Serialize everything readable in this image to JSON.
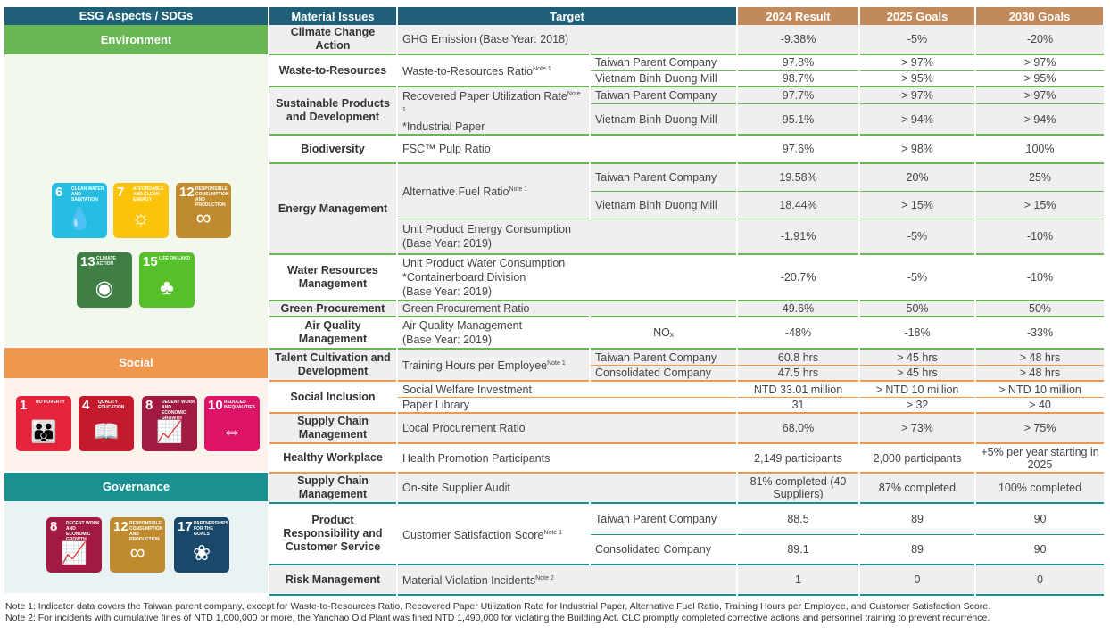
{
  "header": {
    "esg": "ESG Aspects / SDGs",
    "issues": "Material Issues",
    "target": "Target",
    "r2024": "2024 Result",
    "g2025": "2025 Goals",
    "g2030": "2030 Goals"
  },
  "colors": {
    "header_blue": "#1f5f78",
    "header_tan": "#c08a5c",
    "environment": "#6ab554",
    "social": "#f0974f",
    "governance": "#1a9191"
  },
  "sections": [
    {
      "key": "environment",
      "label": "Environment",
      "sdgs": [
        {
          "num": "6",
          "label": "CLEAN WATER AND SANITATION",
          "color": "#26bde2",
          "icon": "water-drop-icon"
        },
        {
          "num": "7",
          "label": "AFFORDABLE AND CLEAN ENERGY",
          "color": "#fcc30b",
          "icon": "sun-icon"
        },
        {
          "num": "12",
          "label": "RESPONSIBLE CONSUMPTION AND PRODUCTION",
          "color": "#bf8b2e",
          "icon": "infinity-icon"
        },
        {
          "num": "13",
          "label": "CLIMATE ACTION",
          "color": "#3f7e44",
          "icon": "eye-globe-icon"
        },
        {
          "num": "15",
          "label": "LIFE ON LAND",
          "color": "#56c02b",
          "icon": "tree-icon"
        }
      ]
    },
    {
      "key": "social",
      "label": "Social",
      "sdgs": [
        {
          "num": "1",
          "label": "NO POVERTY",
          "color": "#e5243b",
          "icon": "family-icon"
        },
        {
          "num": "4",
          "label": "QUALITY EDUCATION",
          "color": "#c5192d",
          "icon": "book-icon"
        },
        {
          "num": "8",
          "label": "DECENT WORK AND ECONOMIC GROWTH",
          "color": "#a21942",
          "icon": "growth-chart-icon"
        },
        {
          "num": "10",
          "label": "REDUCED INEQUALITIES",
          "color": "#dd1367",
          "icon": "equality-icon"
        }
      ]
    },
    {
      "key": "governance",
      "label": "Governance",
      "sdgs": [
        {
          "num": "8",
          "label": "DECENT WORK AND ECONOMIC GROWTH",
          "color": "#a21942",
          "icon": "growth-chart-icon"
        },
        {
          "num": "12",
          "label": "RESPONSIBLE CONSUMPTION AND PRODUCTION",
          "color": "#bf8b2e",
          "icon": "infinity-icon"
        },
        {
          "num": "17",
          "label": "PARTNERSHIPS FOR THE GOALS",
          "color": "#19486a",
          "icon": "flower-icon"
        }
      ]
    }
  ],
  "issues": [
    {
      "section": "environment",
      "issue": "Climate Change Action",
      "targets": [
        {
          "label": "GHG Emission (Base Year: 2018)",
          "rows": [
            {
              "entity": "",
              "r2024": "-9.38%",
              "g2025": "-5%",
              "g2030": "-20%"
            }
          ]
        }
      ]
    },
    {
      "section": "environment",
      "issue": "Waste-to-Resources",
      "targets": [
        {
          "label": "Waste-to-Resources Ratio",
          "note": "Note 1",
          "rows": [
            {
              "entity": "Taiwan Parent Company",
              "r2024": "97.8%",
              "g2025": "> 97%",
              "g2030": "> 97%"
            },
            {
              "entity": "Vietnam Binh Duong Mill",
              "r2024": "98.7%",
              "g2025": "> 95%",
              "g2030": "> 95%"
            }
          ]
        }
      ]
    },
    {
      "section": "environment",
      "issue": "Sustainable Products and Development",
      "targets": [
        {
          "label": "Recovered Paper Utilization Rate",
          "note": "Note 1",
          "label2": "*Industrial Paper",
          "rows": [
            {
              "entity": "Taiwan Parent Company",
              "r2024": "97.7%",
              "g2025": "> 97%",
              "g2030": "> 97%"
            },
            {
              "entity": "Vietnam Binh Duong Mill",
              "r2024": "95.1%",
              "g2025": "> 94%",
              "g2030": "> 94%"
            }
          ]
        }
      ]
    },
    {
      "section": "environment",
      "issue": "Biodiversity",
      "targets": [
        {
          "label": "FSC™ Pulp Ratio",
          "rows": [
            {
              "entity": "",
              "r2024": "97.6%",
              "g2025": "> 98%",
              "g2030": "100%"
            }
          ]
        }
      ]
    },
    {
      "section": "environment",
      "issue": "Energy Management",
      "targets": [
        {
          "label": "Alternative Fuel Ratio",
          "note": "Note 1",
          "rows": [
            {
              "entity": "Taiwan Parent Company",
              "r2024": "19.58%",
              "g2025": "20%",
              "g2030": "25%"
            },
            {
              "entity": "Vietnam Binh Duong Mill",
              "r2024": "18.44%",
              "g2025": "> 15%",
              "g2030": "> 15%"
            }
          ]
        },
        {
          "label": "Unit Product Energy Consumption\n(Base Year: 2019)",
          "rows": [
            {
              "entity": "",
              "r2024": "-1.91%",
              "g2025": "-5%",
              "g2030": "-10%"
            }
          ]
        }
      ]
    },
    {
      "section": "environment",
      "issue": "Water Resources Management",
      "targets": [
        {
          "label": "Unit Product Water Consumption\n*Containerboard Division\n(Base Year: 2019)",
          "rows": [
            {
              "entity": "",
              "r2024": "-20.7%",
              "g2025": "-5%",
              "g2030": "-10%"
            }
          ]
        }
      ]
    },
    {
      "section": "environment",
      "issue": "Green Procurement",
      "targets": [
        {
          "label": "Green Procurement Ratio",
          "rows": [
            {
              "entity": "",
              "r2024": "49.6%",
              "g2025": "50%",
              "g2030": "50%"
            }
          ]
        }
      ]
    },
    {
      "section": "environment",
      "issue": "Air Quality Management",
      "targets": [
        {
          "label": "Air Quality Management\n(Base Year: 2019)",
          "rows": [
            {
              "entity": "NOₓ",
              "r2024": "-48%",
              "g2025": "-18%",
              "g2030": "-33%"
            }
          ]
        }
      ]
    },
    {
      "section": "social",
      "issue": "Talent Cultivation and Development",
      "targets": [
        {
          "label": "Training Hours per Employee",
          "note": "Note 1",
          "rows": [
            {
              "entity": "Taiwan Parent Company",
              "r2024": "60.8 hrs",
              "g2025": "> 45 hrs",
              "g2030": "> 48 hrs"
            },
            {
              "entity": "Consolidated Company",
              "r2024": "47.5 hrs",
              "g2025": "> 45 hrs",
              "g2030": "> 48 hrs"
            }
          ]
        }
      ]
    },
    {
      "section": "social",
      "issue": "Social Inclusion",
      "targets": [
        {
          "label": "Social Welfare Investment",
          "rows": [
            {
              "entity": "",
              "r2024": "NTD 33.01 million",
              "g2025": "> NTD 10 million",
              "g2030": "> NTD 10 million"
            }
          ]
        },
        {
          "label": "Paper Library",
          "rows": [
            {
              "entity": "",
              "r2024": "31",
              "g2025": "> 32",
              "g2030": "> 40"
            }
          ]
        }
      ]
    },
    {
      "section": "social",
      "issue": "Supply Chain Management",
      "targets": [
        {
          "label": "Local Procurement Ratio",
          "rows": [
            {
              "entity": "",
              "r2024": "68.0%",
              "g2025": "> 73%",
              "g2030": "> 75%"
            }
          ]
        }
      ]
    },
    {
      "section": "social",
      "issue": "Healthy Workplace",
      "targets": [
        {
          "label": "Health Promotion Participants",
          "rows": [
            {
              "entity": "",
              "r2024": "2,149 participants",
              "g2025": "2,000 participants",
              "g2030": "+5% per year starting in 2025"
            }
          ]
        }
      ]
    },
    {
      "section": "governance",
      "issue": "Supply Chain Management",
      "targets": [
        {
          "label": "On-site Supplier Audit",
          "rows": [
            {
              "entity": "",
              "r2024": "81% completed (40 Suppliers)",
              "g2025": "87% completed",
              "g2030": "100% completed"
            }
          ]
        }
      ]
    },
    {
      "section": "governance",
      "issue": "Product Responsibility and Customer Service",
      "targets": [
        {
          "label": "Customer Satisfaction Score",
          "note": "Note 1",
          "rows": [
            {
              "entity": "Taiwan Parent Company",
              "r2024": "88.5",
              "g2025": "89",
              "g2030": "90"
            },
            {
              "entity": "Consolidated Company",
              "r2024": "89.1",
              "g2025": "89",
              "g2030": "90"
            }
          ]
        }
      ]
    },
    {
      "section": "governance",
      "issue": "Risk Management",
      "targets": [
        {
          "label": "Material Violation Incidents",
          "note": "Note 2",
          "rows": [
            {
              "entity": "",
              "r2024": "1",
              "g2025": "0",
              "g2030": "0"
            }
          ]
        }
      ]
    }
  ],
  "notes": [
    "Note 1: Indicator data covers the Taiwan parent company, except for Waste-to-Resources Ratio, Recovered Paper Utilization Rate for Industrial Paper, Alternative Fuel Ratio, Training Hours per Employee, and Customer Satisfaction Score.",
    "Note 2: For incidents with cumulative fines of NTD 1,000,000 or more, the Yanchao Old Plant was fined NTD 1,490,000 for violating the Building Act. CLC promptly completed corrective actions and personnel training to prevent recurrence."
  ]
}
